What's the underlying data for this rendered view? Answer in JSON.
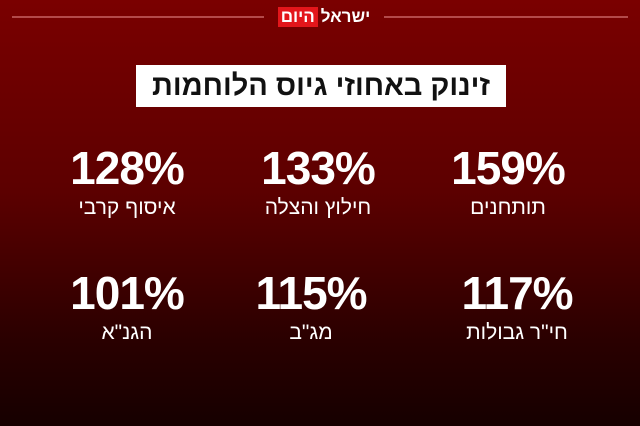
{
  "header": {
    "logo_word_white": "ישראל",
    "logo_word_red": "היום"
  },
  "title": "זינוק באחוזי גיוס הלוחמות",
  "stats": [
    {
      "value": "159%",
      "label": "תותחנים"
    },
    {
      "value": "133%",
      "label": "חילוץ והצלה"
    },
    {
      "value": "128%",
      "label": "איסוף קרבי"
    },
    {
      "value": "117%",
      "label": "חי\"ר גבולות"
    },
    {
      "value": "115%",
      "label": "מג\"ב"
    },
    {
      "value": "101%",
      "label": "הגנ\"א"
    }
  ],
  "colors": {
    "background_top": "#7a0000",
    "background_bottom": "#160000",
    "logo_red": "#e3161b",
    "title_box": "#ffffff"
  }
}
